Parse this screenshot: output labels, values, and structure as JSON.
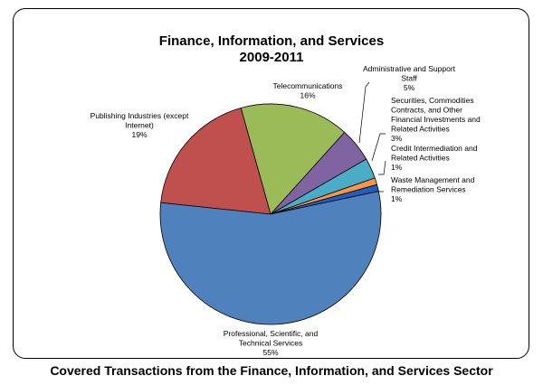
{
  "caption": "Covered Transactions from the Finance, Information, and Services Sector",
  "chart_data": {
    "type": "pie",
    "title": [
      "Finance, Information, and Services",
      "2009-2011"
    ],
    "slices": [
      {
        "name": "Waste Management and Remediation Services",
        "value": 1,
        "label": "1%",
        "color": "#1f5fbf",
        "lines": [
          "Waste Management and",
          "Remediation Services",
          "1%"
        ]
      },
      {
        "name": "Credit Intermediation and Related Activities",
        "value": 1,
        "label": "1%",
        "color": "#f79646",
        "lines": [
          "Credit Intermediation and",
          "Related Activities",
          "1%"
        ]
      },
      {
        "name": "Securities, Commodities Contracts, and Other Financial Investments and Related Activities",
        "value": 3,
        "label": "3%",
        "color": "#4bacc6",
        "lines": [
          "Securities, Commodities",
          "Contracts, and Other",
          "Financial Investments and",
          "Related Activities",
          "3%"
        ]
      },
      {
        "name": "Administrative and Support Staff",
        "value": 5,
        "label": "5%",
        "color": "#8064a2",
        "lines": [
          "Administrative and Support",
          "Staff",
          "5%"
        ]
      },
      {
        "name": "Telecommunications",
        "value": 16,
        "label": "16%",
        "color": "#9bbb59",
        "lines": [
          "Telecommunications",
          "16%"
        ]
      },
      {
        "name": "Publishing Industries (except Internet)",
        "value": 19,
        "label": "19%",
        "color": "#c0504d",
        "lines": [
          "Publishing Industries (except",
          "Internet)",
          "19%"
        ]
      },
      {
        "name": "Professional, Scientific, and Technical Services",
        "value": 55,
        "label": "55%",
        "color": "#4f81bd",
        "lines": [
          "Professional, Scientific, and",
          "Technical Services",
          "55%"
        ]
      }
    ]
  }
}
